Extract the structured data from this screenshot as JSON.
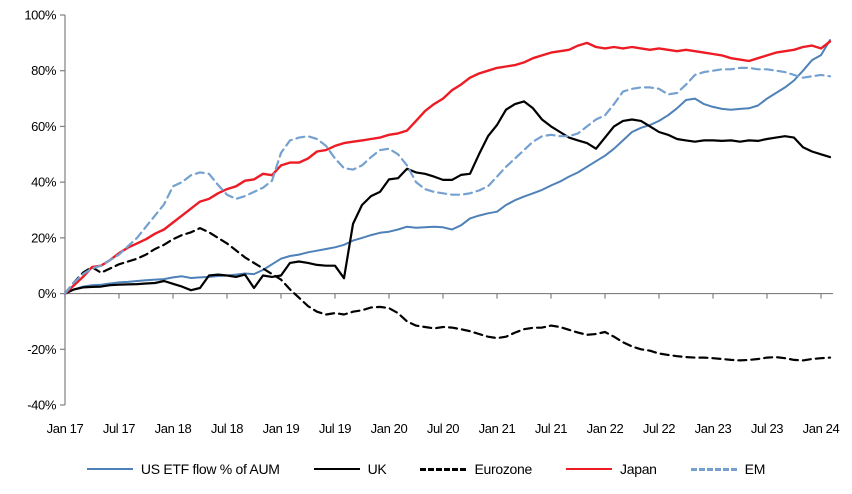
{
  "chart_data": {
    "type": "line",
    "title": "",
    "xlabel": "",
    "ylabel": "",
    "x_unit": "month",
    "x_start_label": "Jan 17",
    "x_tick_labels": [
      "Jan 17",
      "Jul 17",
      "Jan 18",
      "Jul 18",
      "Jan 19",
      "Jul 19",
      "Jan 20",
      "Jul 20",
      "Jan 21",
      "Jul 21",
      "Jan 22",
      "Jul 22",
      "Jan 23",
      "Jul 23",
      "Jan 24"
    ],
    "y_ticks": [
      100,
      80,
      60,
      40,
      20,
      0,
      -20,
      -40
    ],
    "y_tick_labels": [
      "100%",
      "80%",
      "60%",
      "40%",
      "20%",
      "0%",
      "-20%",
      "-40%"
    ],
    "ylim": [
      -40,
      100
    ],
    "grid": "off",
    "legend_position": "bottom",
    "axis_color": "#808080",
    "series": [
      {
        "name": "US ETF flow % of AUM",
        "color": "#4f81b9",
        "style": "solid",
        "values": [
          0,
          1.5,
          2.5,
          3.0,
          3.2,
          3.6,
          4.0,
          4.2,
          4.5,
          4.8,
          5.0,
          5.2,
          5.8,
          6.2,
          5.6,
          5.8,
          6.0,
          6.3,
          6.5,
          6.8,
          7.2,
          7.0,
          8.5,
          10.5,
          12.5,
          13.5,
          14.0,
          14.8,
          15.4,
          16.0,
          16.6,
          17.5,
          19.0,
          20.0,
          21.0,
          21.8,
          22.2,
          23.0,
          24.0,
          23.6,
          23.8,
          24.0,
          23.8,
          23.0,
          24.5,
          27.0,
          28.0,
          28.8,
          29.4,
          31.8,
          33.5,
          34.8,
          36.0,
          37.2,
          38.8,
          40.2,
          42.0,
          43.5,
          45.5,
          47.5,
          49.5,
          52.0,
          55.0,
          58.0,
          59.5,
          60.5,
          62.0,
          64.0,
          66.5,
          69.5,
          70.0,
          68.0,
          67.0,
          66.3,
          66.0,
          66.3,
          66.5,
          67.5,
          70.0,
          72.0,
          74.0,
          76.5,
          80.0,
          83.8,
          85.6,
          91.0
        ]
      },
      {
        "name": "UK",
        "color": "#000000",
        "style": "solid",
        "values": [
          0,
          1.5,
          2.2,
          2.4,
          2.5,
          3.0,
          3.2,
          3.3,
          3.4,
          3.6,
          3.8,
          4.5,
          3.5,
          2.5,
          1.2,
          2.0,
          6.5,
          6.8,
          6.5,
          6.0,
          6.8,
          2.0,
          6.5,
          6.0,
          6.5,
          11.0,
          11.5,
          11.0,
          10.3,
          10.0,
          10.0,
          5.5,
          25.0,
          31.8,
          35.0,
          36.5,
          41.0,
          41.4,
          44.8,
          43.5,
          43.0,
          42.0,
          40.8,
          40.8,
          42.6,
          43.0,
          50.0,
          56.5,
          60.5,
          66.0,
          68.0,
          69.0,
          66.5,
          62.5,
          60.0,
          58.0,
          56.0,
          55.0,
          54.0,
          52.0,
          56.0,
          60.0,
          62.0,
          62.5,
          62.0,
          60.0,
          58.0,
          57.0,
          55.5,
          55.0,
          54.5,
          55.0,
          55.0,
          54.8,
          55.0,
          54.5,
          55.0,
          54.8,
          55.5,
          56.0,
          56.5,
          56.0,
          52.5,
          51.0,
          50.0,
          49.0
        ]
      },
      {
        "name": "Eurozone",
        "color": "#000000",
        "style": "dashed",
        "values": [
          0,
          4.0,
          7.5,
          9.5,
          7.5,
          9.0,
          10.5,
          11.5,
          12.5,
          14.0,
          16.0,
          17.5,
          19.5,
          21.0,
          22.0,
          23.5,
          22.0,
          20.0,
          18.0,
          15.5,
          13.0,
          11.0,
          9.0,
          7.0,
          5.0,
          1.5,
          -1.5,
          -4.5,
          -6.5,
          -7.5,
          -7.0,
          -7.5,
          -6.5,
          -6.0,
          -5.0,
          -4.8,
          -5.2,
          -7.0,
          -10.0,
          -11.5,
          -12.0,
          -12.5,
          -12.0,
          -12.2,
          -12.8,
          -13.5,
          -14.5,
          -15.5,
          -16.0,
          -15.5,
          -14.0,
          -12.8,
          -12.3,
          -12.2,
          -11.5,
          -12.0,
          -13.0,
          -14.0,
          -14.8,
          -14.5,
          -13.8,
          -15.5,
          -17.5,
          -19.0,
          -20.0,
          -20.5,
          -21.5,
          -22.0,
          -22.5,
          -22.8,
          -23.0,
          -23.0,
          -23.2,
          -23.5,
          -23.8,
          -24.0,
          -23.8,
          -23.5,
          -23.0,
          -22.8,
          -23.2,
          -23.8,
          -24.0,
          -23.5,
          -23.2,
          -23.0
        ]
      },
      {
        "name": "Japan",
        "color": "#ed1c24",
        "style": "solid",
        "values": [
          0,
          3.0,
          6.0,
          9.5,
          10.0,
          12.0,
          14.5,
          16.5,
          18.0,
          19.5,
          21.5,
          23.0,
          25.5,
          28.0,
          30.5,
          33.0,
          34.0,
          36.0,
          37.5,
          38.5,
          40.5,
          41.0,
          43.0,
          42.5,
          46.0,
          47.0,
          47.0,
          48.5,
          51.0,
          51.5,
          53.0,
          54.0,
          54.5,
          55.0,
          55.5,
          56.0,
          57.0,
          57.5,
          58.5,
          62.0,
          65.5,
          68.0,
          70.0,
          73.0,
          75.0,
          77.5,
          79.0,
          80.0,
          81.0,
          81.5,
          82.0,
          83.0,
          84.5,
          85.5,
          86.5,
          87.0,
          87.5,
          89.0,
          90.0,
          88.5,
          88.0,
          88.5,
          88.0,
          88.5,
          88.0,
          87.5,
          88.0,
          87.5,
          87.0,
          87.5,
          87.0,
          86.5,
          86.0,
          85.5,
          84.5,
          84.0,
          83.5,
          84.5,
          85.5,
          86.5,
          87.0,
          87.5,
          88.5,
          89.0,
          88.0,
          90.5
        ]
      },
      {
        "name": "EM",
        "color": "#74a1d0",
        "style": "dashed",
        "values": [
          0,
          4.0,
          7.0,
          9.0,
          10.0,
          12.0,
          14.0,
          17.0,
          20.0,
          24.0,
          28.0,
          32.0,
          38.5,
          40.0,
          42.5,
          43.5,
          43.0,
          39.0,
          35.5,
          34.0,
          35.0,
          36.5,
          38.0,
          40.5,
          50.5,
          55.0,
          56.0,
          56.5,
          55.5,
          53.0,
          48.5,
          45.0,
          44.5,
          46.0,
          49.0,
          51.5,
          52.0,
          50.0,
          46.0,
          40.0,
          37.5,
          36.5,
          36.0,
          35.5,
          35.5,
          36.0,
          37.0,
          38.5,
          42.0,
          45.5,
          48.5,
          51.5,
          54.5,
          56.5,
          57.0,
          56.5,
          56.5,
          57.5,
          60.0,
          62.5,
          64.0,
          68.0,
          72.5,
          73.5,
          74.0,
          74.0,
          73.5,
          71.5,
          72.0,
          75.0,
          78.5,
          79.5,
          80.0,
          80.5,
          80.5,
          81.0,
          81.0,
          80.5,
          80.5,
          80.0,
          79.5,
          78.5,
          77.5,
          78.0,
          78.5,
          78.0
        ]
      }
    ]
  }
}
